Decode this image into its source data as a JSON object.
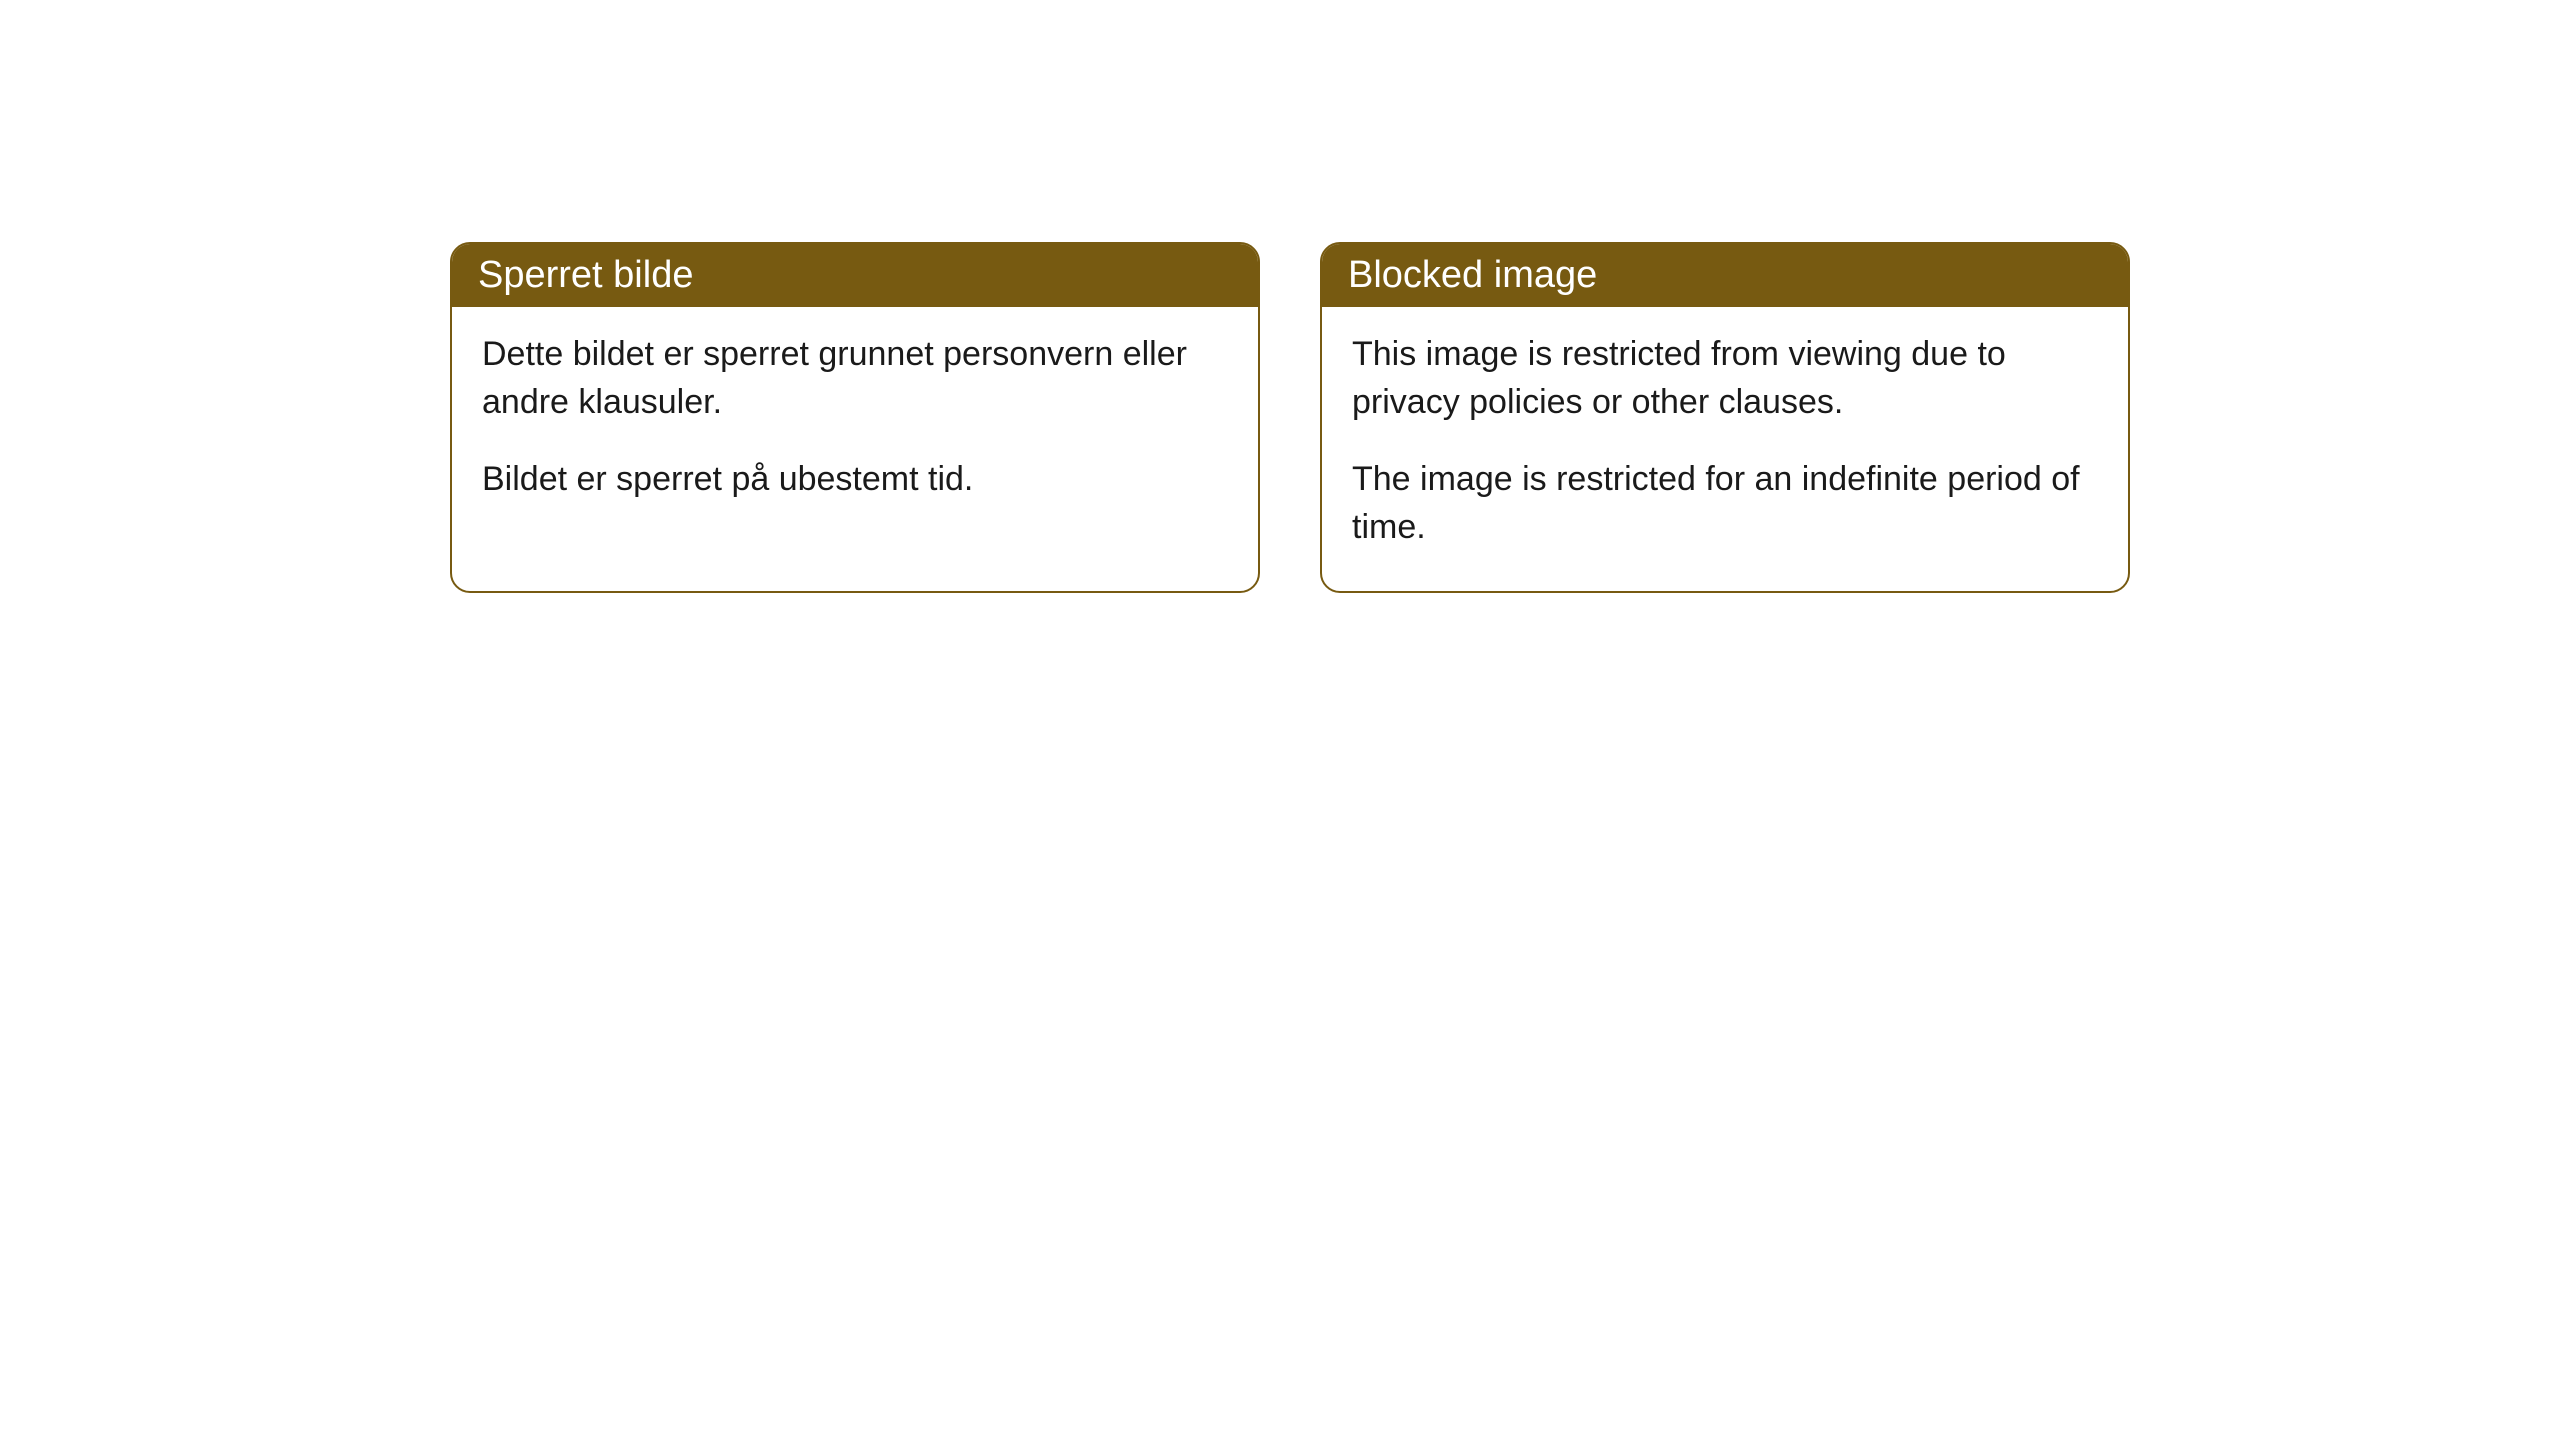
{
  "cards": [
    {
      "title": "Sperret bilde",
      "paragraph1": "Dette bildet er sperret grunnet personvern eller andre klausuler.",
      "paragraph2": "Bildet er sperret på ubestemt tid."
    },
    {
      "title": "Blocked image",
      "paragraph1": "This image is restricted from viewing due to privacy policies or other clauses.",
      "paragraph2": "The image is restricted for an indefinite period of time."
    }
  ],
  "styling": {
    "header_background_color": "#775a11",
    "header_text_color": "#ffffff",
    "border_color": "#775a11",
    "body_background_color": "#ffffff",
    "body_text_color": "#1a1a1a",
    "border_radius": 20,
    "header_fontsize": 38,
    "body_fontsize": 34
  }
}
